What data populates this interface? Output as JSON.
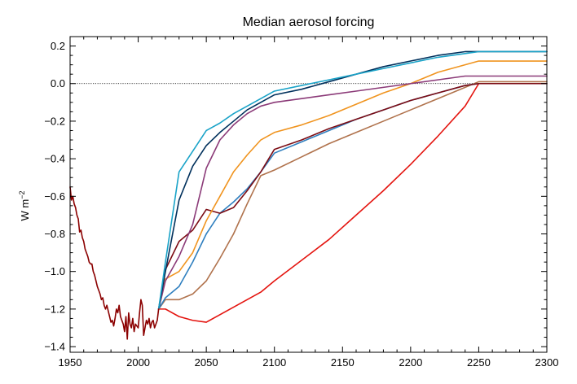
{
  "chart_data": {
    "type": "line",
    "title": "Median aerosol forcing",
    "xlabel": "",
    "ylabel_base": "W m",
    "ylabel_exp": "−2",
    "xlim": [
      1950,
      2300
    ],
    "ylim": [
      -1.43,
      0.25
    ],
    "xticks": [
      1950,
      2000,
      2050,
      2100,
      2150,
      2200,
      2250,
      2300
    ],
    "yticks": [
      0.2,
      0.0,
      -0.2,
      -0.4,
      -0.6,
      -0.8,
      -1.0,
      -1.2,
      -1.4
    ],
    "xtick_labels": [
      "1950",
      "2000",
      "2050",
      "2100",
      "2150",
      "2200",
      "2250",
      "2300"
    ],
    "ytick_labels": [
      "0.2",
      "0.0",
      "−0.2",
      "−0.4",
      "−0.6",
      "−0.8",
      "−1.0",
      "−1.2",
      "−1.4"
    ],
    "zero_line": true,
    "grid": false,
    "history": {
      "color": "#8b0000",
      "x": [
        1950,
        1951,
        1952,
        1953,
        1954,
        1955,
        1956,
        1957,
        1958,
        1959,
        1960,
        1961,
        1962,
        1963,
        1964,
        1965,
        1966,
        1967,
        1968,
        1969,
        1970,
        1971,
        1972,
        1973,
        1974,
        1975,
        1976,
        1977,
        1978,
        1979,
        1980,
        1981,
        1982,
        1983,
        1984,
        1985,
        1986,
        1987,
        1988,
        1989,
        1990,
        1991,
        1992,
        1993,
        1994,
        1995,
        1996,
        1997,
        1998,
        1999,
        2000,
        2001,
        2002,
        2003,
        2004,
        2005,
        2006,
        2007,
        2008,
        2009,
        2010,
        2011,
        2012,
        2013,
        2014,
        2015
      ],
      "y": [
        -0.55,
        -0.62,
        -0.6,
        -0.64,
        -0.66,
        -0.7,
        -0.72,
        -0.79,
        -0.78,
        -0.82,
        -0.84,
        -0.88,
        -0.9,
        -0.92,
        -0.95,
        -0.96,
        -0.96,
        -1.0,
        -1.02,
        -1.05,
        -1.08,
        -1.1,
        -1.12,
        -1.15,
        -1.14,
        -1.18,
        -1.2,
        -1.18,
        -1.21,
        -1.24,
        -1.27,
        -1.26,
        -1.29,
        -1.25,
        -1.2,
        -1.22,
        -1.18,
        -1.24,
        -1.26,
        -1.28,
        -1.32,
        -1.24,
        -1.36,
        -1.22,
        -1.28,
        -1.3,
        -1.25,
        -1.32,
        -1.28,
        -1.29,
        -1.3,
        -1.22,
        -1.15,
        -1.18,
        -1.34,
        -1.3,
        -1.26,
        -1.28,
        -1.25,
        -1.3,
        -1.27,
        -1.26,
        -1.3,
        -1.28,
        -1.26,
        -1.2
      ]
    },
    "series": [
      {
        "color": "#e4140f",
        "x": [
          2015,
          2020,
          2030,
          2040,
          2050,
          2060,
          2070,
          2080,
          2090,
          2100,
          2120,
          2140,
          2160,
          2180,
          2200,
          2220,
          2240,
          2250,
          2300
        ],
        "y": [
          -1.2,
          -1.2,
          -1.24,
          -1.26,
          -1.27,
          -1.23,
          -1.19,
          -1.15,
          -1.11,
          -1.05,
          -0.94,
          -0.83,
          -0.7,
          -0.57,
          -0.43,
          -0.28,
          -0.12,
          0.0,
          0.0
        ]
      },
      {
        "color": "#b0724c",
        "x": [
          2015,
          2020,
          2030,
          2040,
          2050,
          2060,
          2070,
          2080,
          2090,
          2100,
          2120,
          2140,
          2160,
          2180,
          2200,
          2220,
          2240,
          2250,
          2300
        ],
        "y": [
          -1.2,
          -1.15,
          -1.15,
          -1.12,
          -1.05,
          -0.93,
          -0.8,
          -0.64,
          -0.49,
          -0.46,
          -0.39,
          -0.32,
          -0.26,
          -0.2,
          -0.14,
          -0.08,
          -0.02,
          0.01,
          0.01
        ]
      },
      {
        "color": "#2f7fbf",
        "x": [
          2015,
          2020,
          2030,
          2040,
          2050,
          2060,
          2070,
          2080,
          2090,
          2100,
          2120,
          2140,
          2160,
          2180,
          2200,
          2220,
          2240,
          2250,
          2300
        ],
        "y": [
          -1.2,
          -1.14,
          -1.08,
          -0.95,
          -0.8,
          -0.69,
          -0.63,
          -0.56,
          -0.47,
          -0.37,
          -0.31,
          -0.25,
          -0.19,
          -0.14,
          -0.09,
          -0.05,
          -0.01,
          0.0,
          0.0
        ]
      },
      {
        "color": "#7c0c14",
        "x": [
          2015,
          2020,
          2030,
          2040,
          2050,
          2060,
          2070,
          2080,
          2090,
          2100,
          2120,
          2140,
          2160,
          2180,
          2200,
          2220,
          2240,
          2250,
          2300
        ],
        "y": [
          -1.2,
          -0.99,
          -0.84,
          -0.78,
          -0.67,
          -0.69,
          -0.66,
          -0.57,
          -0.47,
          -0.35,
          -0.3,
          -0.24,
          -0.19,
          -0.14,
          -0.09,
          -0.05,
          -0.01,
          0.0,
          0.0
        ]
      },
      {
        "color": "#f0941f",
        "x": [
          2015,
          2020,
          2030,
          2040,
          2050,
          2060,
          2070,
          2080,
          2090,
          2100,
          2120,
          2140,
          2160,
          2180,
          2200,
          2220,
          2240,
          2250,
          2300
        ],
        "y": [
          -1.2,
          -1.04,
          -1.0,
          -0.9,
          -0.73,
          -0.6,
          -0.47,
          -0.38,
          -0.3,
          -0.26,
          -0.22,
          -0.17,
          -0.11,
          -0.05,
          0.0,
          0.06,
          0.1,
          0.12,
          0.12
        ]
      },
      {
        "color": "#8b3a78",
        "x": [
          2015,
          2020,
          2030,
          2040,
          2050,
          2060,
          2070,
          2080,
          2090,
          2100,
          2120,
          2140,
          2160,
          2180,
          2200,
          2220,
          2240,
          2250,
          2300
        ],
        "y": [
          -1.2,
          -1.05,
          -0.92,
          -0.75,
          -0.45,
          -0.3,
          -0.22,
          -0.16,
          -0.12,
          -0.1,
          -0.08,
          -0.06,
          -0.04,
          -0.02,
          0.0,
          0.02,
          0.04,
          0.04,
          0.04
        ]
      },
      {
        "color": "#00305c",
        "x": [
          2015,
          2020,
          2030,
          2040,
          2050,
          2060,
          2070,
          2080,
          2090,
          2100,
          2120,
          2140,
          2160,
          2180,
          2200,
          2220,
          2240,
          2250,
          2300
        ],
        "y": [
          -1.2,
          -1.0,
          -0.62,
          -0.44,
          -0.33,
          -0.26,
          -0.2,
          -0.14,
          -0.1,
          -0.06,
          -0.03,
          0.01,
          0.05,
          0.09,
          0.12,
          0.15,
          0.17,
          0.17,
          0.17
        ]
      },
      {
        "color": "#1aa3c8",
        "x": [
          2015,
          2020,
          2030,
          2040,
          2050,
          2060,
          2070,
          2080,
          2090,
          2100,
          2120,
          2140,
          2160,
          2180,
          2200,
          2220,
          2240,
          2250,
          2300
        ],
        "y": [
          -1.2,
          -0.95,
          -0.47,
          -0.36,
          -0.25,
          -0.21,
          -0.16,
          -0.12,
          -0.08,
          -0.04,
          -0.01,
          0.02,
          0.05,
          0.08,
          0.11,
          0.14,
          0.16,
          0.17,
          0.17
        ]
      }
    ]
  }
}
